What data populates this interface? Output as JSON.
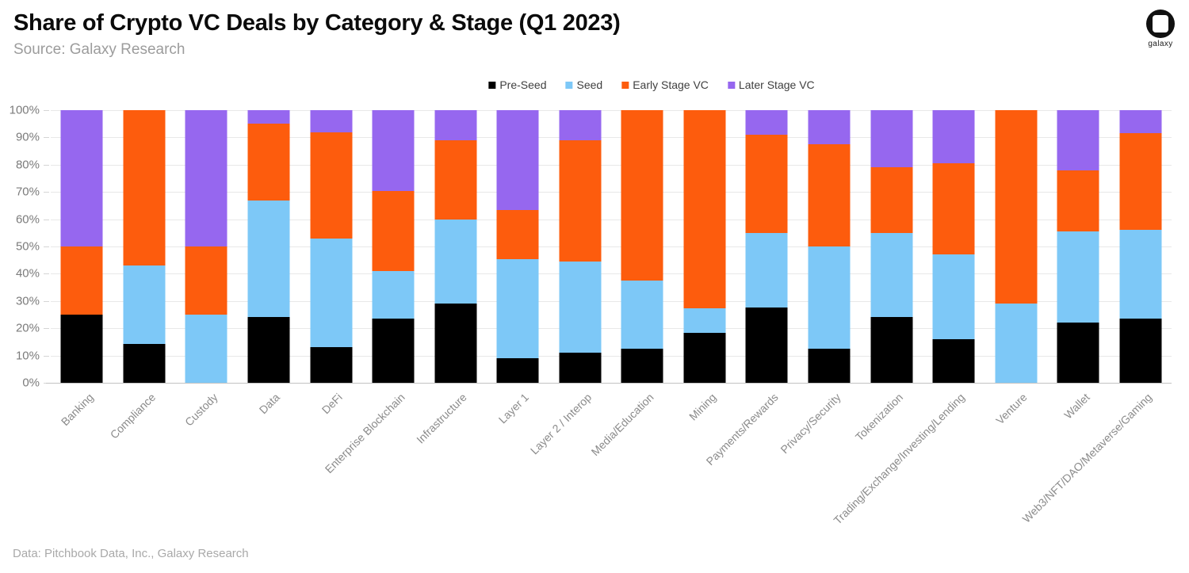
{
  "header": {
    "title": "Share of Crypto VC Deals by Category & Stage (Q1 2023)",
    "subtitle": "Source: Galaxy Research",
    "logo_text": "galaxy"
  },
  "footer": {
    "attribution": "Data: Pitchbook Data, Inc., Galaxy Research"
  },
  "chart_data": {
    "type": "bar",
    "stacked": true,
    "normalized": "percent",
    "title": "Share of Crypto VC Deals by Category & Stage (Q1 2023)",
    "xlabel": "",
    "ylabel": "",
    "ylim": [
      0,
      100
    ],
    "yticks": [
      "0%",
      "10%",
      "20%",
      "30%",
      "40%",
      "50%",
      "60%",
      "70%",
      "80%",
      "90%",
      "100%"
    ],
    "grid": true,
    "legend_position": "top",
    "categories": [
      "Banking",
      "Compliance",
      "Custody",
      "Data",
      "DeFi",
      "Enterprise Blockchain",
      "Infrastructure",
      "Layer 1",
      "Layer 2 / Interop",
      "Media/Education",
      "Mining",
      "Payments/Rewards",
      "Privacy/Security",
      "Tokenization",
      "Trading/Exchange/Investing/Lending",
      "Venture",
      "Wallet",
      "Web3/NFT/DAO/Metaverse/Gaming"
    ],
    "series": [
      {
        "name": "Pre-Seed",
        "color": "#000000",
        "values": [
          25,
          14.3,
          0,
          24,
          13,
          23.5,
          29,
          9,
          11,
          12.5,
          18.2,
          27.5,
          12.5,
          24,
          16,
          0,
          22.2,
          23.5
        ]
      },
      {
        "name": "Seed",
        "color": "#7dc8f7",
        "values": [
          0,
          28.6,
          25,
          43,
          40,
          17.5,
          31,
          36.5,
          33.5,
          25,
          9.1,
          27.5,
          37.5,
          31,
          31,
          29,
          33.4,
          32.5
        ]
      },
      {
        "name": "Early Stage VC",
        "color": "#fd5c0d",
        "values": [
          25,
          57.1,
          25,
          28,
          39,
          29.5,
          29,
          18,
          44.5,
          62.5,
          72.7,
          36,
          37.5,
          24,
          33.5,
          71,
          22.2,
          35.5
        ]
      },
      {
        "name": "Later Stage VC",
        "color": "#9667ef",
        "values": [
          50,
          0,
          50,
          5,
          8,
          29.5,
          11,
          36.5,
          11,
          0,
          0,
          9,
          12.5,
          21,
          19.5,
          0,
          22.2,
          8.5
        ]
      }
    ]
  }
}
